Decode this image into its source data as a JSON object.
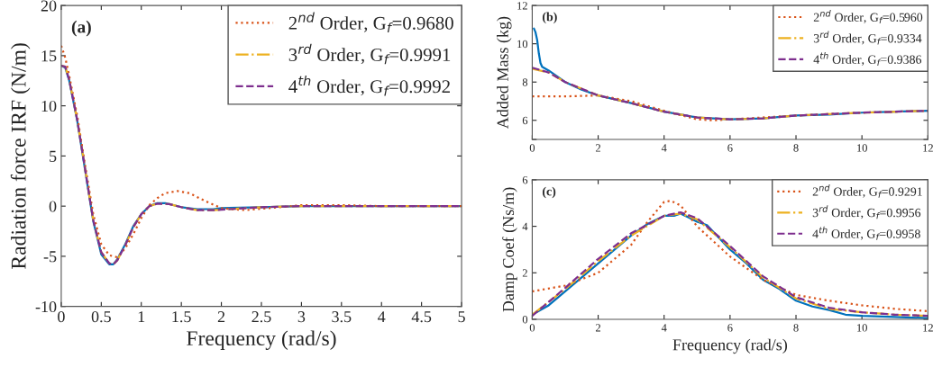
{
  "chart_data": [
    {
      "type": "line",
      "ylabel": "Radiation force IRF (N/m)",
      "xlabel": "Frequency (rad/s)",
      "annotations": [
        "(a)"
      ],
      "xlim": [
        0,
        5
      ],
      "ylim": [
        -10,
        20
      ],
      "xticks": [
        0,
        0.5,
        1,
        1.5,
        2,
        2.5,
        3,
        3.5,
        4,
        4.5,
        5
      ],
      "yticks": [
        -10,
        -5,
        0,
        5,
        10,
        15,
        20
      ],
      "grid": false,
      "legend": "top right",
      "series": [
        {
          "color": "#0072bd",
          "line_style": "solid",
          "x": [
            0,
            0.05,
            0.1,
            0.2,
            0.3,
            0.4,
            0.5,
            0.6,
            0.65,
            0.7,
            0.8,
            0.9,
            1.0,
            1.1,
            1.2,
            1.3,
            1.4,
            1.5,
            1.7,
            1.9,
            2.0,
            2.5,
            3,
            4,
            5
          ],
          "values": [
            14,
            13.8,
            12.5,
            8.5,
            3.5,
            -1.5,
            -4.8,
            -5.8,
            -5.8,
            -5.3,
            -3.8,
            -2,
            -0.8,
            0,
            0.3,
            0.3,
            0.1,
            -0.1,
            -0.3,
            -0.3,
            -0.2,
            -0.1,
            0,
            0,
            0
          ]
        },
        {
          "name": "2$^{nd}$ Order, G$_{f}$=0.9680",
          "color": "#d95319",
          "line_style": "dotted",
          "x": [
            0,
            0.05,
            0.1,
            0.2,
            0.3,
            0.4,
            0.5,
            0.6,
            0.7,
            0.8,
            0.9,
            1.0,
            1.1,
            1.2,
            1.3,
            1.45,
            1.6,
            1.8,
            2.0,
            2.3,
            2.6,
            3,
            3.5,
            4,
            5
          ],
          "values": [
            16,
            14.8,
            13,
            9,
            4,
            -0.8,
            -3.8,
            -4.9,
            -5.1,
            -4.2,
            -2.8,
            -1.2,
            0.1,
            0.8,
            1.3,
            1.5,
            1.3,
            0.5,
            -0.2,
            -0.4,
            -0.2,
            0.1,
            0.1,
            0,
            0
          ]
        },
        {
          "name": "3$^{rd}$ Order, G$_{f}$=0.9991",
          "color": "#edb120",
          "line_style": "dashdot",
          "x": [
            0,
            0.05,
            0.1,
            0.2,
            0.3,
            0.4,
            0.5,
            0.6,
            0.65,
            0.7,
            0.8,
            0.9,
            1.0,
            1.1,
            1.2,
            1.35,
            1.5,
            1.7,
            1.9,
            2.1,
            2.5,
            3,
            4,
            5
          ],
          "values": [
            14,
            13.9,
            12.6,
            8.6,
            3.6,
            -1.4,
            -4.6,
            -5.7,
            -5.8,
            -5.4,
            -3.9,
            -2.1,
            -0.8,
            0,
            0.25,
            0.2,
            -0.1,
            -0.4,
            -0.4,
            -0.3,
            -0.1,
            0,
            0,
            0
          ]
        },
        {
          "name": "4$^{th}$ Order, G$_{f}$=0.9992",
          "color": "#7e2f8e",
          "line_style": "dashed",
          "x": [
            0,
            0.05,
            0.1,
            0.2,
            0.3,
            0.4,
            0.5,
            0.6,
            0.65,
            0.7,
            0.8,
            0.9,
            1.0,
            1.1,
            1.2,
            1.35,
            1.5,
            1.7,
            1.9,
            2.1,
            2.5,
            3,
            4,
            5
          ],
          "values": [
            14,
            13.9,
            12.6,
            8.6,
            3.6,
            -1.4,
            -4.6,
            -5.7,
            -5.8,
            -5.4,
            -3.9,
            -2.1,
            -0.8,
            0,
            0.25,
            0.2,
            -0.1,
            -0.4,
            -0.4,
            -0.3,
            -0.1,
            0,
            0,
            0
          ]
        }
      ]
    },
    {
      "type": "line",
      "ylabel": "Added Mass (kg)",
      "annotations": [
        "(b)"
      ],
      "xlim": [
        0,
        12
      ],
      "ylim": [
        5,
        12
      ],
      "xticks": [
        0,
        2,
        4,
        6,
        8,
        10,
        12
      ],
      "yticks": [
        {
          "value": 5,
          "label": null
        },
        6,
        8,
        10,
        12
      ],
      "grid": false,
      "legend": "top right",
      "series": [
        {
          "color": "#0072bd",
          "line_style": "solid",
          "x": [
            0.05,
            0.1,
            0.15,
            0.2,
            0.25,
            0.3,
            0.5,
            1,
            1.5,
            2,
            3,
            4,
            5,
            6,
            7,
            8,
            9,
            10,
            11,
            12
          ],
          "values": [
            10.8,
            10.6,
            10.2,
            9.5,
            9.0,
            8.8,
            8.6,
            8.0,
            7.6,
            7.3,
            6.9,
            6.45,
            6.15,
            6.05,
            6.1,
            6.25,
            6.3,
            6.4,
            6.45,
            6.5
          ]
        },
        {
          "name": "2$^{nd}$ Order, G$_{f}$=0.5960",
          "color": "#d95319",
          "line_style": "dotted",
          "x": [
            0,
            1,
            2,
            3,
            4,
            5,
            5.5,
            6,
            7,
            8,
            10,
            12
          ],
          "values": [
            7.25,
            7.25,
            7.3,
            7.0,
            6.5,
            6.05,
            6.0,
            6.05,
            6.15,
            6.25,
            6.4,
            6.5
          ]
        },
        {
          "name": "3$^{rd}$ Order, G$_{f}$=0.9334",
          "color": "#edb120",
          "line_style": "dashdot",
          "x": [
            0,
            0.5,
            1,
            2,
            3,
            4,
            5,
            6,
            7,
            8,
            10,
            12
          ],
          "values": [
            8.7,
            8.5,
            8.0,
            7.3,
            6.9,
            6.45,
            6.15,
            6.05,
            6.1,
            6.25,
            6.4,
            6.5
          ]
        },
        {
          "name": "4$^{th}$ Order, G$_{f}$=0.9386",
          "color": "#7e2f8e",
          "line_style": "dashed",
          "x": [
            0,
            0.5,
            1,
            2,
            3,
            4,
            5,
            6,
            7,
            8,
            10,
            12
          ],
          "values": [
            8.75,
            8.5,
            8.0,
            7.3,
            6.9,
            6.45,
            6.15,
            6.05,
            6.1,
            6.25,
            6.4,
            6.5
          ]
        }
      ]
    },
    {
      "type": "line",
      "ylabel": "Damp Coef (Ns/m)",
      "xlabel": "Frequency (rad/s)",
      "annotations": [
        "(c)"
      ],
      "xlim": [
        0,
        12
      ],
      "ylim": [
        0,
        6
      ],
      "xticks": [
        0,
        2,
        4,
        6,
        8,
        10,
        12
      ],
      "yticks": [
        0,
        2,
        4,
        6
      ],
      "grid": false,
      "legend": "top right",
      "series": [
        {
          "color": "#0072bd",
          "line_style": "solid",
          "x": [
            0,
            0.5,
            1,
            2,
            3,
            3.5,
            4,
            4.3,
            4.5,
            5,
            5.3,
            6,
            6.5,
            7,
            7.5,
            8,
            8.5,
            9,
            9.5,
            10,
            11,
            12
          ],
          "values": [
            0.2,
            0.6,
            1.2,
            2.4,
            3.6,
            4.1,
            4.45,
            4.45,
            4.55,
            4.2,
            4.05,
            3.0,
            2.4,
            1.7,
            1.3,
            0.8,
            0.55,
            0.4,
            0.2,
            0.15,
            0.1,
            0.05
          ]
        },
        {
          "name": "2$^{nd}$ Order, G$_{f}$=0.9291",
          "color": "#d95319",
          "line_style": "dotted",
          "x": [
            0,
            1,
            2,
            3,
            3.5,
            4,
            4.2,
            4.5,
            5,
            6,
            7,
            8,
            9,
            10,
            11,
            12
          ],
          "values": [
            1.2,
            1.45,
            2.0,
            3.2,
            4.2,
            5.05,
            5.1,
            4.9,
            4.0,
            2.7,
            1.7,
            1.05,
            0.8,
            0.6,
            0.45,
            0.35
          ]
        },
        {
          "name": "3$^{rd}$ Order, G$_{f}$=0.9956",
          "color": "#edb120",
          "line_style": "dashdot",
          "x": [
            0,
            1,
            2,
            3,
            4,
            4.5,
            5,
            6,
            7,
            8,
            9,
            10,
            11,
            12
          ],
          "values": [
            0.2,
            1.3,
            2.5,
            3.6,
            4.45,
            4.55,
            4.3,
            3.1,
            1.8,
            0.9,
            0.45,
            0.3,
            0.2,
            0.15
          ]
        },
        {
          "name": "4$^{th}$ Order, G$_{f}$=0.9958",
          "color": "#7e2f8e",
          "line_style": "dashed",
          "x": [
            0,
            1,
            2,
            3,
            4,
            4.5,
            5,
            6,
            7,
            8,
            9,
            10,
            11,
            12
          ],
          "values": [
            0.15,
            1.35,
            2.6,
            3.7,
            4.45,
            4.6,
            4.35,
            3.15,
            1.85,
            0.95,
            0.5,
            0.3,
            0.2,
            0.15
          ]
        }
      ]
    }
  ]
}
